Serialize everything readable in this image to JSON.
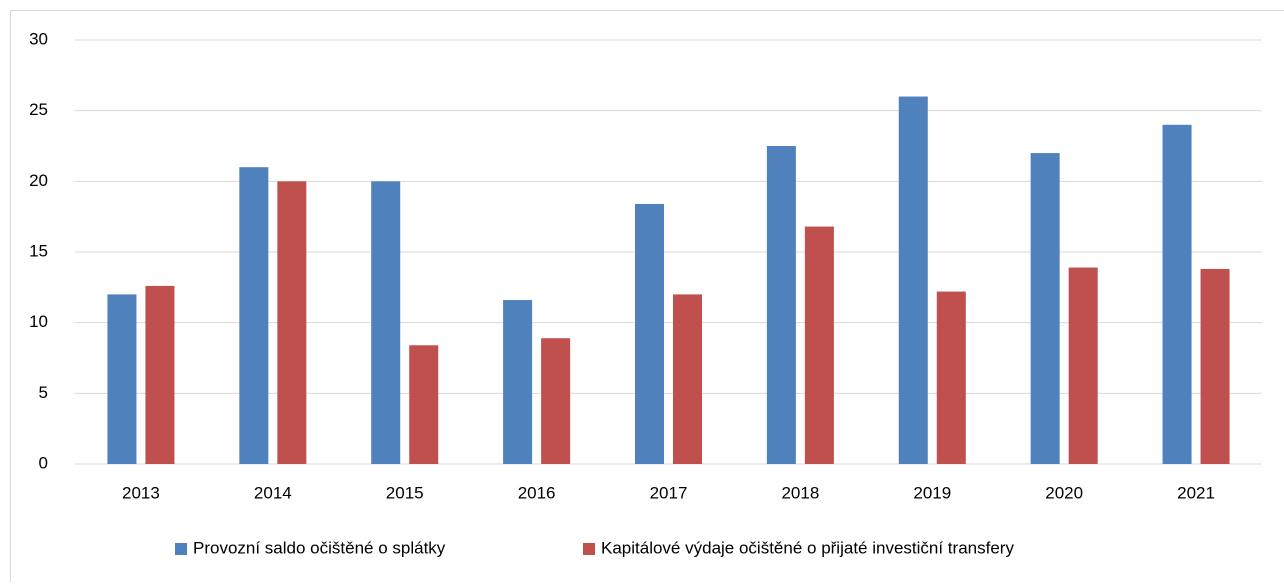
{
  "chart_data": {
    "type": "bar",
    "categories": [
      "2013",
      "2014",
      "2015",
      "2016",
      "2017",
      "2018",
      "2019",
      "2020",
      "2021"
    ],
    "series": [
      {
        "name": "Provozní saldo očištěné o splátky",
        "color": "#4f81bd",
        "values": [
          12,
          21,
          20,
          11.6,
          18.4,
          22.5,
          26,
          22,
          24
        ]
      },
      {
        "name": "Kapitálové výdaje očištěné o přijaté investiční transfery",
        "color": "#c0504d",
        "values": [
          12.6,
          20,
          8.4,
          8.9,
          12,
          16.8,
          12.2,
          13.9,
          13.8
        ]
      }
    ],
    "ylim": [
      0,
      30
    ],
    "yticks": [
      0,
      5,
      10,
      15,
      20,
      25,
      30
    ],
    "grid": true,
    "legend": "bottom"
  }
}
